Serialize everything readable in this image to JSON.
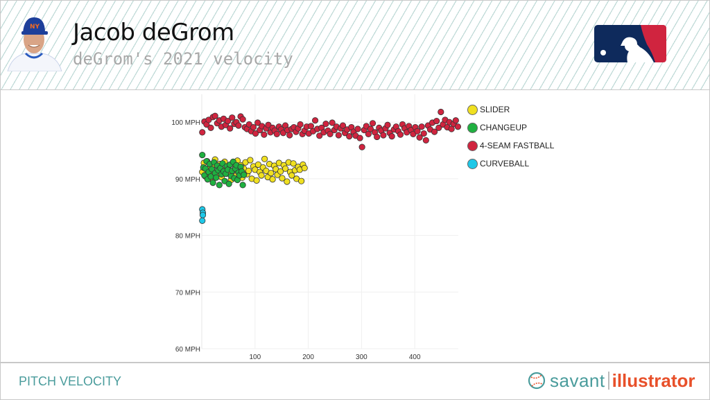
{
  "header": {
    "title": "Jacob deGrom",
    "subtitle": "deGrom's 2021 velocity",
    "logo": "MLB"
  },
  "footer": {
    "title": "PITCH VELOCITY",
    "brand_left": "savant",
    "brand_right": "illustrator"
  },
  "chart_data": {
    "type": "scatter",
    "title": "",
    "xlabel": "",
    "ylabel": "",
    "xlim": [
      0,
      482
    ],
    "ylim": [
      60,
      104
    ],
    "x_ticks": [
      100,
      200,
      300,
      400
    ],
    "x_tick_labels": [
      "100",
      "200",
      "300",
      "400"
    ],
    "y_ticks": [
      60,
      70,
      80,
      90,
      100
    ],
    "y_tick_labels": [
      "60 MPH",
      "70 MPH",
      "80 MPH",
      "90 MPH",
      "100 MPH"
    ],
    "grid": true,
    "legend_position": "right",
    "series": [
      {
        "name": "SLIDER",
        "color": "#f0e020",
        "x": [
          1,
          4,
          7,
          10,
          13,
          16,
          19,
          22,
          25,
          28,
          31,
          34,
          37,
          40,
          43,
          46,
          49,
          52,
          55,
          58,
          61,
          64,
          67,
          70,
          73,
          76,
          79,
          82,
          85,
          88,
          91,
          94,
          97,
          100,
          103,
          106,
          109,
          112,
          115,
          118,
          121,
          124,
          127,
          130,
          133,
          136,
          139,
          142,
          145,
          148,
          151,
          154,
          157,
          160,
          163,
          166,
          169,
          172,
          175,
          178,
          181,
          184,
          187,
          190,
          193
        ],
        "y": [
          91.2,
          92.8,
          90.4,
          93.1,
          91.7,
          90.1,
          92.3,
          91.0,
          93.4,
          90.7,
          91.9,
          92.6,
          90.3,
          91.5,
          93.0,
          90.9,
          92.1,
          91.3,
          89.8,
          92.7,
          91.6,
          90.5,
          93.2,
          91.1,
          92.4,
          90.2,
          91.8,
          92.9,
          90.8,
          91.4,
          93.3,
          90.0,
          92.2,
          91.6,
          89.7,
          92.5,
          91.2,
          90.6,
          92.0,
          93.5,
          91.4,
          90.3,
          92.6,
          91.0,
          89.9,
          92.3,
          91.7,
          90.7,
          92.8,
          91.3,
          90.1,
          92.4,
          91.8,
          89.5,
          92.9,
          91.2,
          90.6,
          92.7,
          91.5,
          90.0,
          92.1,
          91.6,
          89.6,
          92.5,
          91.9
        ]
      },
      {
        "name": "CHANGEUP",
        "color": "#1fb040",
        "x": [
          1,
          3,
          5,
          7,
          9,
          11,
          13,
          15,
          17,
          19,
          21,
          23,
          25,
          27,
          29,
          31,
          33,
          35,
          37,
          39,
          41,
          43,
          45,
          47,
          49,
          51,
          53,
          55,
          57,
          59,
          61,
          63,
          65,
          67,
          69,
          71,
          73,
          75,
          77,
          79
        ],
        "y": [
          94.2,
          92.0,
          90.6,
          91.8,
          93.1,
          89.9,
          91.2,
          92.6,
          90.4,
          91.7,
          89.3,
          92.9,
          91.0,
          90.2,
          92.3,
          91.5,
          88.9,
          91.9,
          90.8,
          92.7,
          91.3,
          89.6,
          90.9,
          92.2,
          91.6,
          89.1,
          92.5,
          90.5,
          91.4,
          93.0,
          90.1,
          91.8,
          92.4,
          89.8,
          91.1,
          90.6,
          92.1,
          91.3,
          88.9,
          90.7
        ]
      },
      {
        "name": "4-SEAM FASTBALL",
        "color": "#d0243f",
        "x": [
          1,
          5,
          9,
          13,
          17,
          21,
          25,
          29,
          33,
          37,
          41,
          45,
          49,
          53,
          57,
          61,
          65,
          69,
          73,
          77,
          81,
          85,
          89,
          93,
          97,
          101,
          105,
          109,
          113,
          117,
          121,
          125,
          129,
          133,
          137,
          141,
          145,
          149,
          153,
          157,
          161,
          165,
          169,
          173,
          177,
          181,
          185,
          189,
          193,
          197,
          201,
          205,
          209,
          213,
          217,
          221,
          225,
          229,
          233,
          237,
          241,
          245,
          249,
          253,
          257,
          261,
          265,
          269,
          273,
          277,
          281,
          285,
          289,
          293,
          297,
          301,
          305,
          309,
          313,
          317,
          321,
          325,
          329,
          333,
          337,
          341,
          345,
          349,
          353,
          357,
          361,
          365,
          369,
          373,
          377,
          381,
          385,
          389,
          393,
          397,
          401,
          405,
          409,
          413,
          417,
          421,
          425,
          429,
          433,
          437,
          441,
          445,
          449,
          453,
          457,
          461,
          465,
          469,
          473,
          477,
          481
        ],
        "y": [
          98.2,
          100.1,
          99.6,
          100.4,
          99.0,
          100.9,
          101.1,
          99.8,
          100.3,
          99.2,
          100.6,
          99.5,
          100.2,
          98.9,
          100.8,
          99.7,
          100.0,
          99.4,
          101.0,
          100.5,
          99.1,
          98.8,
          99.6,
          98.4,
          99.1,
          98.0,
          99.9,
          98.6,
          99.3,
          97.8,
          98.9,
          99.5,
          98.2,
          99.0,
          98.5,
          97.9,
          99.2,
          98.7,
          98.1,
          99.4,
          98.6,
          97.7,
          98.8,
          99.1,
          98.3,
          98.9,
          99.6,
          97.9,
          98.5,
          99.2,
          98.0,
          99.3,
          98.4,
          100.3,
          98.8,
          97.6,
          99.0,
          98.2,
          99.7,
          98.5,
          97.9,
          99.9,
          98.6,
          99.2,
          97.7,
          98.9,
          99.4,
          98.1,
          98.7,
          97.5,
          99.1,
          98.3,
          97.6,
          98.8,
          97.2,
          95.6,
          98.6,
          99.3,
          97.9,
          98.8,
          99.8,
          98.2,
          97.4,
          99.0,
          98.5,
          97.7,
          98.9,
          99.5,
          98.1,
          97.5,
          98.7,
          99.2,
          98.4,
          97.8,
          99.6,
          98.9,
          98.2,
          99.3,
          98.6,
          97.9,
          99.1,
          98.4,
          97.3,
          99.2,
          98.0,
          96.8,
          99.4,
          98.7,
          99.9,
          98.3,
          100.2,
          99.0,
          101.8,
          99.6,
          100.4,
          99.1,
          100.0,
          98.8,
          99.7,
          100.3,
          99.2
        ]
      },
      {
        "name": "CURVEBALL",
        "color": "#1ec8e8",
        "x": [
          1,
          2,
          2,
          1
        ],
        "y": [
          84.6,
          84.0,
          83.6,
          82.6
        ]
      }
    ]
  }
}
